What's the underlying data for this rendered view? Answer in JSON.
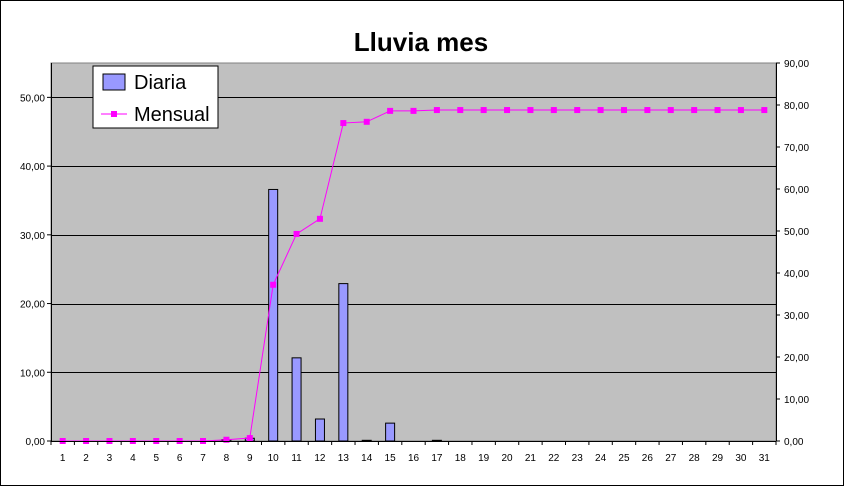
{
  "chart_data": {
    "type": "bar",
    "title": "Lluvia mes",
    "xlabel": "",
    "ylabel": "",
    "grid": true,
    "legend_position": "top-left",
    "categories": [
      "1",
      "2",
      "3",
      "4",
      "5",
      "6",
      "7",
      "8",
      "9",
      "10",
      "11",
      "12",
      "13",
      "14",
      "15",
      "16",
      "17",
      "18",
      "19",
      "20",
      "21",
      "22",
      "23",
      "24",
      "25",
      "26",
      "27",
      "28",
      "29",
      "30",
      "31"
    ],
    "y_left": {
      "range": [
        0,
        55
      ],
      "ticks": [
        "0,00",
        "10,00",
        "20,00",
        "30,00",
        "40,00",
        "50,00"
      ],
      "tick_values": [
        0,
        10,
        20,
        30,
        40,
        50
      ]
    },
    "y_right": {
      "range": [
        0,
        90
      ],
      "ticks": [
        "0,00",
        "10,00",
        "20,00",
        "30,00",
        "40,00",
        "50,00",
        "60,00",
        "70,00",
        "80,00",
        "90,00"
      ],
      "tick_values": [
        0,
        10,
        20,
        30,
        40,
        50,
        60,
        70,
        80,
        90
      ]
    },
    "series": [
      {
        "name": "Diaria",
        "type": "bar",
        "axis": "left",
        "color": "#9999ff",
        "values": [
          0,
          0,
          0,
          0,
          0,
          0,
          0,
          0.2,
          0.4,
          36.6,
          12.1,
          3.2,
          22.9,
          0.1,
          2.6,
          0,
          0.1,
          0,
          0,
          0,
          0,
          0,
          0,
          0,
          0,
          0,
          0,
          0,
          0,
          0,
          0
        ]
      },
      {
        "name": "Mensual",
        "type": "line",
        "axis": "right",
        "color": "#ff00ff",
        "values": [
          0,
          0,
          0,
          0,
          0,
          0,
          0,
          0.3,
          0.7,
          37.2,
          49.3,
          52.9,
          75.7,
          76.0,
          78.6,
          78.6,
          78.8,
          78.8,
          78.8,
          78.8,
          78.8,
          78.8,
          78.8,
          78.8,
          78.8,
          78.8,
          78.8,
          78.8,
          78.8,
          78.8,
          78.8
        ]
      }
    ]
  }
}
